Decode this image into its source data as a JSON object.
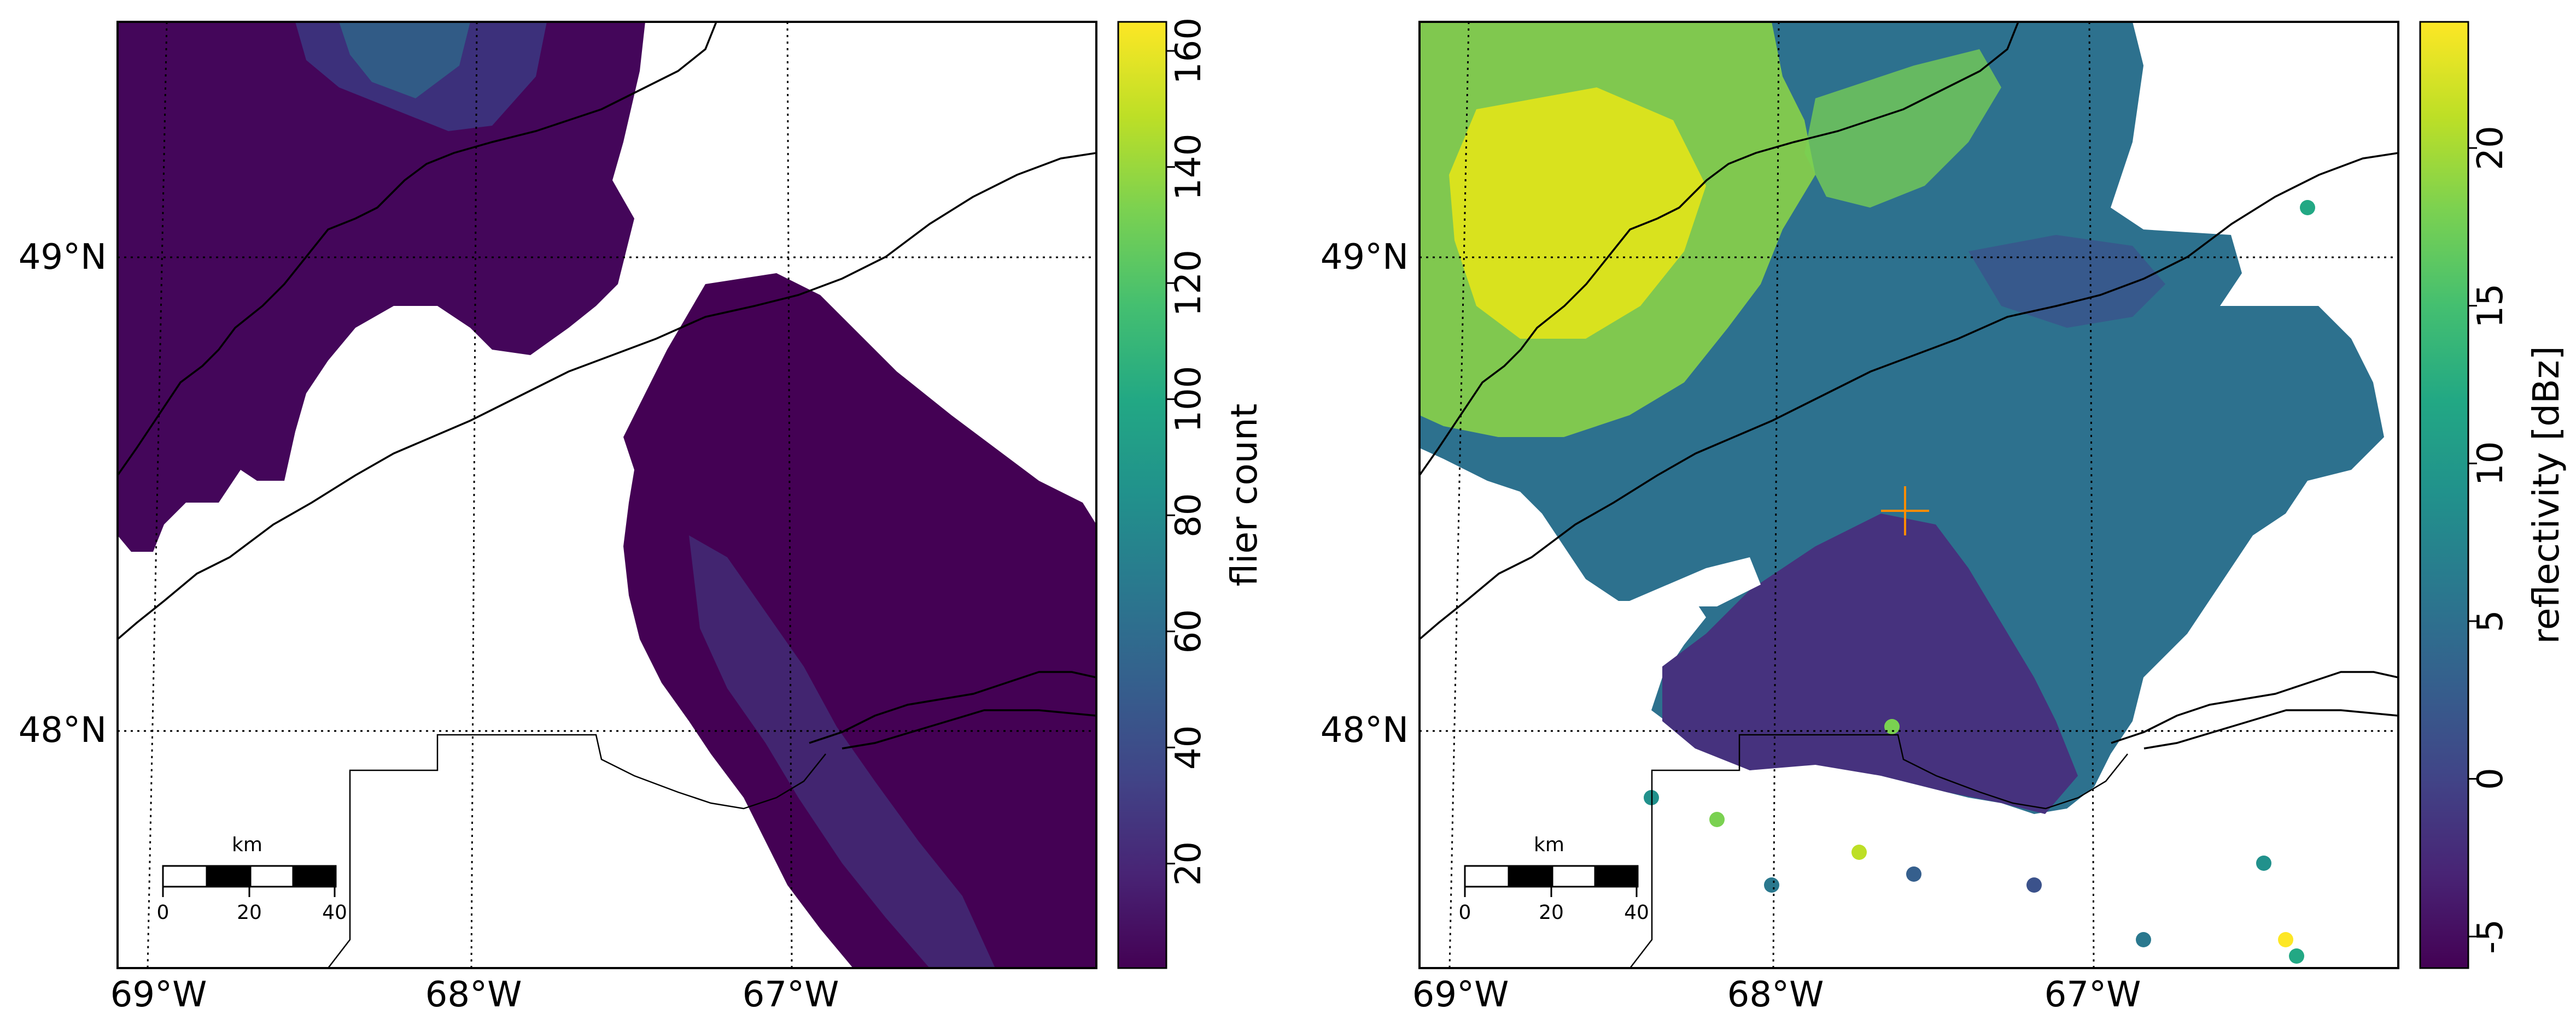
{
  "panels": [
    {
      "id": "left",
      "colorbar": {
        "label": "flier count",
        "ticks": [
          "20",
          "40",
          "60",
          "80",
          "100",
          "120",
          "140",
          "160"
        ],
        "range": [
          2,
          165
        ]
      },
      "scale_bar": {
        "unit": "km",
        "labels": [
          "0",
          "20",
          "40"
        ]
      },
      "lat_labels": [
        "49°N",
        "48°N"
      ],
      "lon_labels": [
        "69°W",
        "68°W",
        "67°W"
      ],
      "marker": null
    },
    {
      "id": "right",
      "colorbar": {
        "label": "reflectivity [dBz]",
        "ticks": [
          "-5",
          "0",
          "5",
          "10",
          "15",
          "20"
        ],
        "range": [
          -6,
          24
        ]
      },
      "scale_bar": {
        "unit": "km",
        "labels": [
          "0",
          "20",
          "40"
        ]
      },
      "lat_labels": [
        "49°N",
        "48°N"
      ],
      "lon_labels": [
        "69°W",
        "68°W",
        "67°W"
      ],
      "marker": {
        "type": "radar-site-cross",
        "color": "#ff8c00"
      }
    }
  ],
  "colormap": "viridis",
  "colors": {
    "viridis_low": "#440154",
    "viridis_mid": "#21918c",
    "viridis_high": "#fde725",
    "coastline": "#000000",
    "marker": "#ff8c00"
  }
}
